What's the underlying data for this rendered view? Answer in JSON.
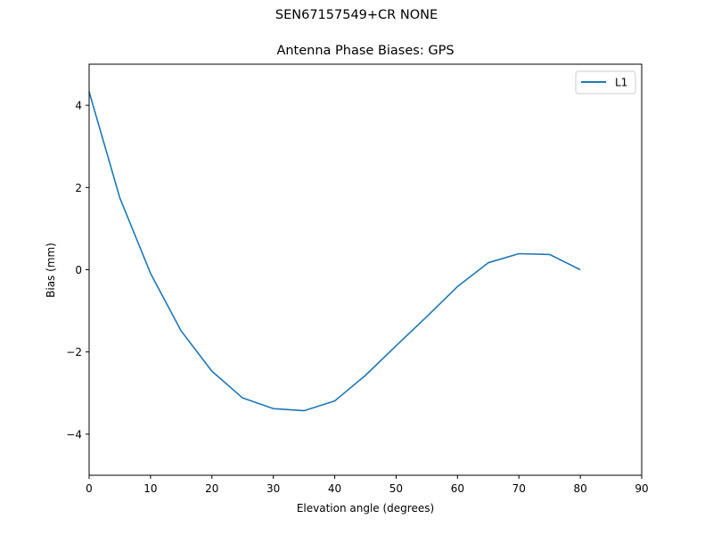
{
  "suptitle": "SEN67157549+CR  NONE",
  "chart_data": {
    "type": "line",
    "title": "Antenna Phase Biases: GPS",
    "xlabel": "Elevation angle (degrees)",
    "ylabel": "Bias (mm)",
    "xlim": [
      0,
      90
    ],
    "ylim": [
      -5,
      5
    ],
    "xticks": [
      0,
      10,
      20,
      30,
      40,
      50,
      60,
      70,
      80,
      90
    ],
    "yticks": [
      -4,
      -2,
      0,
      2,
      4
    ],
    "ytick_labels": [
      "−4",
      "−2",
      "0",
      "2",
      "4"
    ],
    "grid": false,
    "legend_position": "upper right",
    "series": [
      {
        "name": "L1",
        "color": "#1f77b4",
        "x": [
          0,
          5,
          10,
          15,
          20,
          25,
          30,
          35,
          40,
          45,
          50,
          55,
          60,
          65,
          70,
          75,
          80
        ],
        "values": [
          4.33,
          1.75,
          -0.09,
          -1.49,
          -2.47,
          -3.12,
          -3.38,
          -3.43,
          -3.19,
          -2.57,
          -1.85,
          -1.14,
          -0.41,
          0.17,
          0.39,
          0.37,
          0.0
        ]
      }
    ]
  }
}
